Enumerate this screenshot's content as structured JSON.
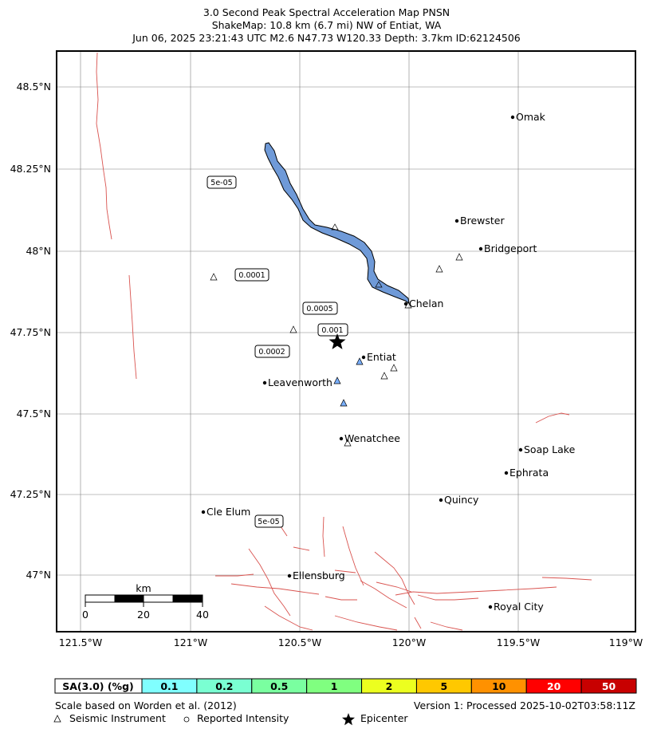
{
  "title": {
    "line1": "3.0 Second Peak Spectral Acceleration Map PNSN",
    "line2": "ShakeMap: 10.8 km (6.7 mi) NW of Entiat, WA",
    "line3": "Jun 06, 2025 23:21:43 UTC M2.6 N47.73 W120.33 Depth: 3.7km ID:62124506"
  },
  "axes": {
    "lat_labels": [
      "48.5°N",
      "48.25°N",
      "48°N",
      "47.75°N",
      "47.5°N",
      "47.25°N",
      "47°N"
    ],
    "lon_labels": [
      "121.5°W",
      "121°W",
      "120.5°W",
      "120°W",
      "119.5°W",
      "119°W"
    ]
  },
  "cities": [
    {
      "name": "Omak"
    },
    {
      "name": "Brewster"
    },
    {
      "name": "Bridgeport"
    },
    {
      "name": "Chelan"
    },
    {
      "name": "Entiat"
    },
    {
      "name": "Leavenworth"
    },
    {
      "name": "Wenatchee"
    },
    {
      "name": "Soap Lake"
    },
    {
      "name": "Ephrata"
    },
    {
      "name": "Quincy"
    },
    {
      "name": "Cle Elum"
    },
    {
      "name": "Ellensburg"
    },
    {
      "name": "Royal City"
    }
  ],
  "contours": [
    "5e-05",
    "0.0001",
    "0.0005",
    "0.001",
    "0.0002",
    "5e-05"
  ],
  "scalebar": {
    "unit": "km",
    "ticks": [
      "0",
      "20",
      "40"
    ]
  },
  "legend": {
    "label": "SA(3.0) (%g)",
    "bins": [
      {
        "value": "0.1",
        "color": "#80ffff"
      },
      {
        "value": "0.2",
        "color": "#7affd2"
      },
      {
        "value": "0.5",
        "color": "#7affa0"
      },
      {
        "value": "1",
        "color": "#80ff80"
      },
      {
        "value": "2",
        "color": "#ecff1f"
      },
      {
        "value": "5",
        "color": "#ffc800"
      },
      {
        "value": "10",
        "color": "#ff9100"
      },
      {
        "value": "20",
        "color": "#ff0000"
      },
      {
        "value": "50",
        "color": "#c80000"
      }
    ]
  },
  "footer": {
    "scale_note": "Scale based on Worden et al. (2012)",
    "version": "Version 1: Processed 2025-10-02T03:58:11Z",
    "instrument": "Seismic Instrument",
    "intensity": "Reported Intensity",
    "epicenter": "Epicenter"
  },
  "colors": {
    "lake": "#6f9ad8",
    "fault": "#d9534f",
    "grid": "#808080",
    "epicenter": "#000000"
  }
}
